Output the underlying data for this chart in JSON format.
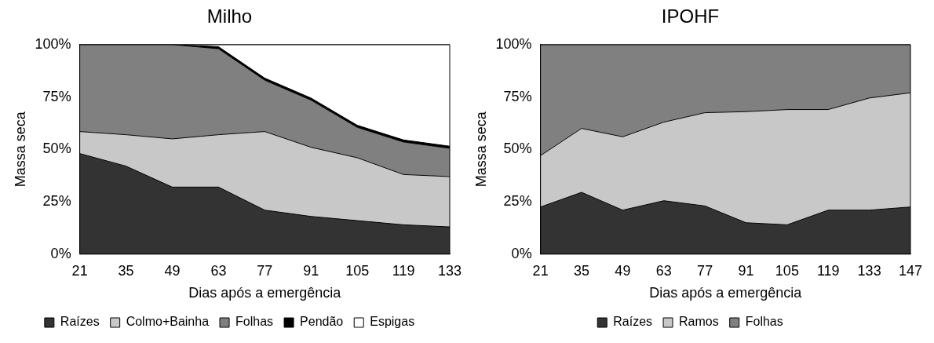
{
  "chart_data": [
    {
      "type": "area",
      "title": "Milho",
      "xlabel": "Dias após a emergência",
      "ylabel": "Massa seca",
      "stacked": true,
      "legend": "bottom",
      "categories": [
        "21",
        "35",
        "49",
        "63",
        "77",
        "91",
        "105",
        "119",
        "133"
      ],
      "ylim": [
        0,
        100
      ],
      "yticks": [
        {
          "value": 0,
          "label": "0%"
        },
        {
          "value": 25,
          "label": "25%"
        },
        {
          "value": 50,
          "label": "50%"
        },
        {
          "value": 75,
          "label": "75%"
        },
        {
          "value": 100,
          "label": "100%"
        }
      ],
      "series": [
        {
          "name": "Raízes",
          "color": "#333333",
          "values": [
            48,
            42,
            32,
            32,
            21,
            18,
            16,
            14,
            13
          ]
        },
        {
          "name": "Colmo+Bainha",
          "color": "#c8c8c8",
          "values": [
            10.5,
            15,
            23,
            25,
            37.5,
            33,
            30,
            24,
            24
          ]
        },
        {
          "name": "Folhas",
          "color": "#808080",
          "values": [
            41.5,
            43,
            45,
            41,
            24.5,
            22.5,
            14.5,
            15.5,
            13.5
          ]
        },
        {
          "name": "Pendão",
          "color": "#000000",
          "values": [
            0,
            0,
            0,
            1,
            1,
            1,
            1,
            1,
            1
          ]
        },
        {
          "name": "Espigas",
          "color": "#ffffff",
          "values": [
            0,
            0,
            0,
            1,
            16,
            25.5,
            38.5,
            45.5,
            48.5
          ]
        }
      ]
    },
    {
      "type": "area",
      "title": "IPOHF",
      "xlabel": "Dias após a emergência",
      "ylabel": "Massa seca",
      "stacked": true,
      "legend": "bottom",
      "categories": [
        "21",
        "35",
        "49",
        "63",
        "77",
        "91",
        "105",
        "119",
        "133",
        "147"
      ],
      "ylim": [
        0,
        100
      ],
      "yticks": [
        {
          "value": 0,
          "label": "0%"
        },
        {
          "value": 25,
          "label": "25%"
        },
        {
          "value": 50,
          "label": "50%"
        },
        {
          "value": 75,
          "label": "75%"
        },
        {
          "value": 100,
          "label": "100%"
        }
      ],
      "series": [
        {
          "name": "Raízes",
          "color": "#333333",
          "values": [
            22.5,
            29.5,
            21,
            25.5,
            23,
            15,
            14,
            21,
            21,
            22.5
          ]
        },
        {
          "name": "Ramos",
          "color": "#c8c8c8",
          "values": [
            24.5,
            30.5,
            35,
            37.5,
            44.5,
            53,
            55,
            48,
            53.5,
            54.5
          ]
        },
        {
          "name": "Folhas",
          "color": "#808080",
          "values": [
            53,
            40,
            44,
            37,
            32.5,
            32,
            31,
            31,
            25.5,
            23
          ]
        }
      ]
    }
  ]
}
